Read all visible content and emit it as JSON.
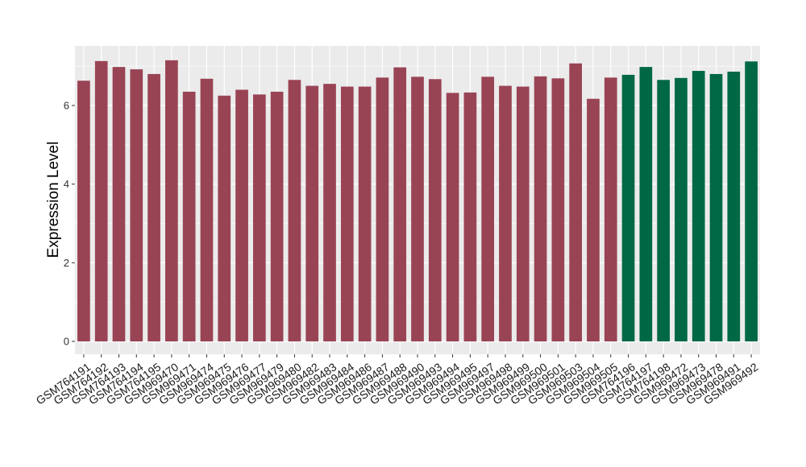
{
  "chart_data": {
    "type": "bar",
    "title": "",
    "xlabel": "",
    "ylabel": "Expression Level",
    "ylim": [
      0,
      7.5
    ],
    "yticks": [
      0,
      2,
      4,
      6
    ],
    "grid": true,
    "legend": "none",
    "categories": [
      "GSM764191",
      "GSM764192",
      "GSM764193",
      "GSM764194",
      "GSM764195",
      "GSM969470",
      "GSM969471",
      "GSM969474",
      "GSM969475",
      "GSM969476",
      "GSM969477",
      "GSM969479",
      "GSM969480",
      "GSM969482",
      "GSM969483",
      "GSM969484",
      "GSM969486",
      "GSM969487",
      "GSM969488",
      "GSM969490",
      "GSM969493",
      "GSM969494",
      "GSM969495",
      "GSM969497",
      "GSM969498",
      "GSM969499",
      "GSM969500",
      "GSM969501",
      "GSM969503",
      "GSM969504",
      "GSM969505",
      "GSM764196",
      "GSM764197",
      "GSM764198",
      "GSM969472",
      "GSM969473",
      "GSM969478",
      "GSM969491",
      "GSM969492"
    ],
    "values": [
      6.63,
      7.13,
      6.98,
      6.92,
      6.8,
      7.15,
      6.35,
      6.68,
      6.25,
      6.4,
      6.28,
      6.35,
      6.65,
      6.5,
      6.55,
      6.48,
      6.48,
      6.71,
      6.97,
      6.73,
      6.67,
      6.32,
      6.33,
      6.73,
      6.5,
      6.48,
      6.74,
      6.69,
      7.07,
      6.17,
      6.71,
      6.78,
      6.98,
      6.65,
      6.7,
      6.88,
      6.8,
      6.86,
      7.12
    ],
    "group_sizes": [
      31,
      8
    ],
    "group_colors": [
      "#994455",
      "#006845"
    ]
  },
  "colors": {
    "panel_background": "#ebebeb",
    "grid_line": "#ffffff",
    "axis_text": "#333333"
  }
}
